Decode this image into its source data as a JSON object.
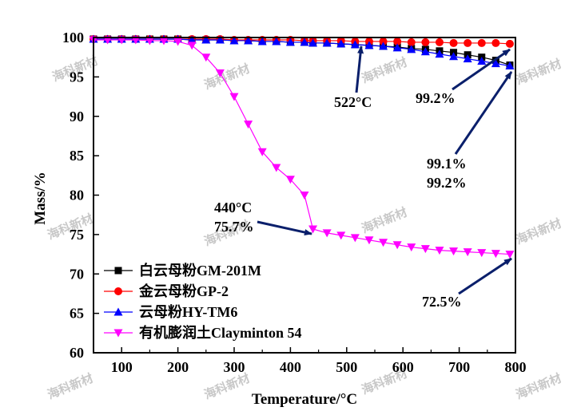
{
  "chart_data": {
    "type": "line",
    "xlabel": "Temperature/°C",
    "ylabel": "Mass/%",
    "xlim": [
      50,
      800
    ],
    "ylim": [
      60,
      100
    ],
    "xticks": [
      100,
      200,
      300,
      400,
      500,
      600,
      700,
      800
    ],
    "yticks": [
      60,
      65,
      70,
      75,
      80,
      85,
      90,
      95,
      100
    ],
    "x": [
      50,
      75,
      100,
      125,
      150,
      175,
      200,
      225,
      250,
      275,
      300,
      325,
      350,
      375,
      400,
      425,
      440,
      465,
      490,
      515,
      540,
      565,
      590,
      615,
      640,
      665,
      690,
      715,
      740,
      765,
      790
    ],
    "legend_position": "bottom-left",
    "series": [
      {
        "name": "白云母粉GM-201M",
        "color": "#000000",
        "marker": "square",
        "values": [
          99.8,
          99.8,
          99.8,
          99.8,
          99.8,
          99.8,
          99.8,
          99.7,
          99.7,
          99.7,
          99.6,
          99.6,
          99.5,
          99.5,
          99.4,
          99.4,
          99.3,
          99.3,
          99.2,
          99.1,
          99.0,
          98.9,
          98.8,
          98.6,
          98.5,
          98.3,
          98.1,
          97.8,
          97.5,
          97.1,
          96.5
        ]
      },
      {
        "name": "金云母粉GP-2",
        "color": "#ff0000",
        "marker": "circle",
        "values": [
          99.8,
          99.8,
          99.8,
          99.8,
          99.8,
          99.8,
          99.8,
          99.8,
          99.8,
          99.8,
          99.7,
          99.7,
          99.7,
          99.7,
          99.7,
          99.6,
          99.6,
          99.6,
          99.6,
          99.5,
          99.5,
          99.5,
          99.5,
          99.4,
          99.4,
          99.4,
          99.3,
          99.3,
          99.3,
          99.3,
          99.2
        ]
      },
      {
        "name": "云母粉HY-TM6",
        "color": "#0000ff",
        "marker": "triangle-up",
        "values": [
          99.8,
          99.8,
          99.8,
          99.8,
          99.8,
          99.8,
          99.8,
          99.7,
          99.7,
          99.7,
          99.6,
          99.6,
          99.5,
          99.5,
          99.4,
          99.4,
          99.3,
          99.3,
          99.2,
          99.1,
          99.0,
          98.9,
          98.7,
          98.5,
          98.2,
          97.9,
          97.6,
          97.3,
          97.0,
          96.7,
          96.4
        ]
      },
      {
        "name": "有机膨润土Clayminton 54",
        "color": "#ff00ff",
        "marker": "triangle-down",
        "values": [
          99.7,
          99.7,
          99.7,
          99.7,
          99.6,
          99.6,
          99.5,
          99.0,
          97.5,
          95.5,
          92.5,
          89.0,
          85.5,
          83.5,
          82.0,
          80.0,
          75.7,
          75.2,
          74.9,
          74.6,
          74.3,
          74.0,
          73.7,
          73.4,
          73.2,
          73.0,
          72.9,
          72.8,
          72.7,
          72.6,
          72.5
        ]
      }
    ],
    "annotations": [
      {
        "text": "522°C",
        "x": 520,
        "y": 96.5,
        "tip": [
          522,
          99.1
        ],
        "text_lines": [
          "522°C"
        ]
      },
      {
        "text": "99.2%",
        "lines": [
          "99.2%"
        ],
        "x": 610,
        "y": 92.6,
        "tip": [
          790,
          99.2
        ]
      },
      {
        "text": "99.1% 99.2%",
        "lines": [
          "99.1%",
          "99.2%"
        ],
        "x": 620,
        "y": 81.0,
        "tip": [
          790,
          96.4
        ]
      },
      {
        "text": "440°C 75.7%",
        "lines": [
          "440°C",
          "75.7%"
        ],
        "x": 340,
        "y": 77.5,
        "tip": [
          440,
          75.7
        ]
      },
      {
        "text": "72.5%",
        "lines": [
          "72.5%"
        ],
        "x": 555,
        "y": 66.0,
        "tip": [
          790,
          72.2
        ]
      }
    ],
    "watermark": "海科新材"
  }
}
